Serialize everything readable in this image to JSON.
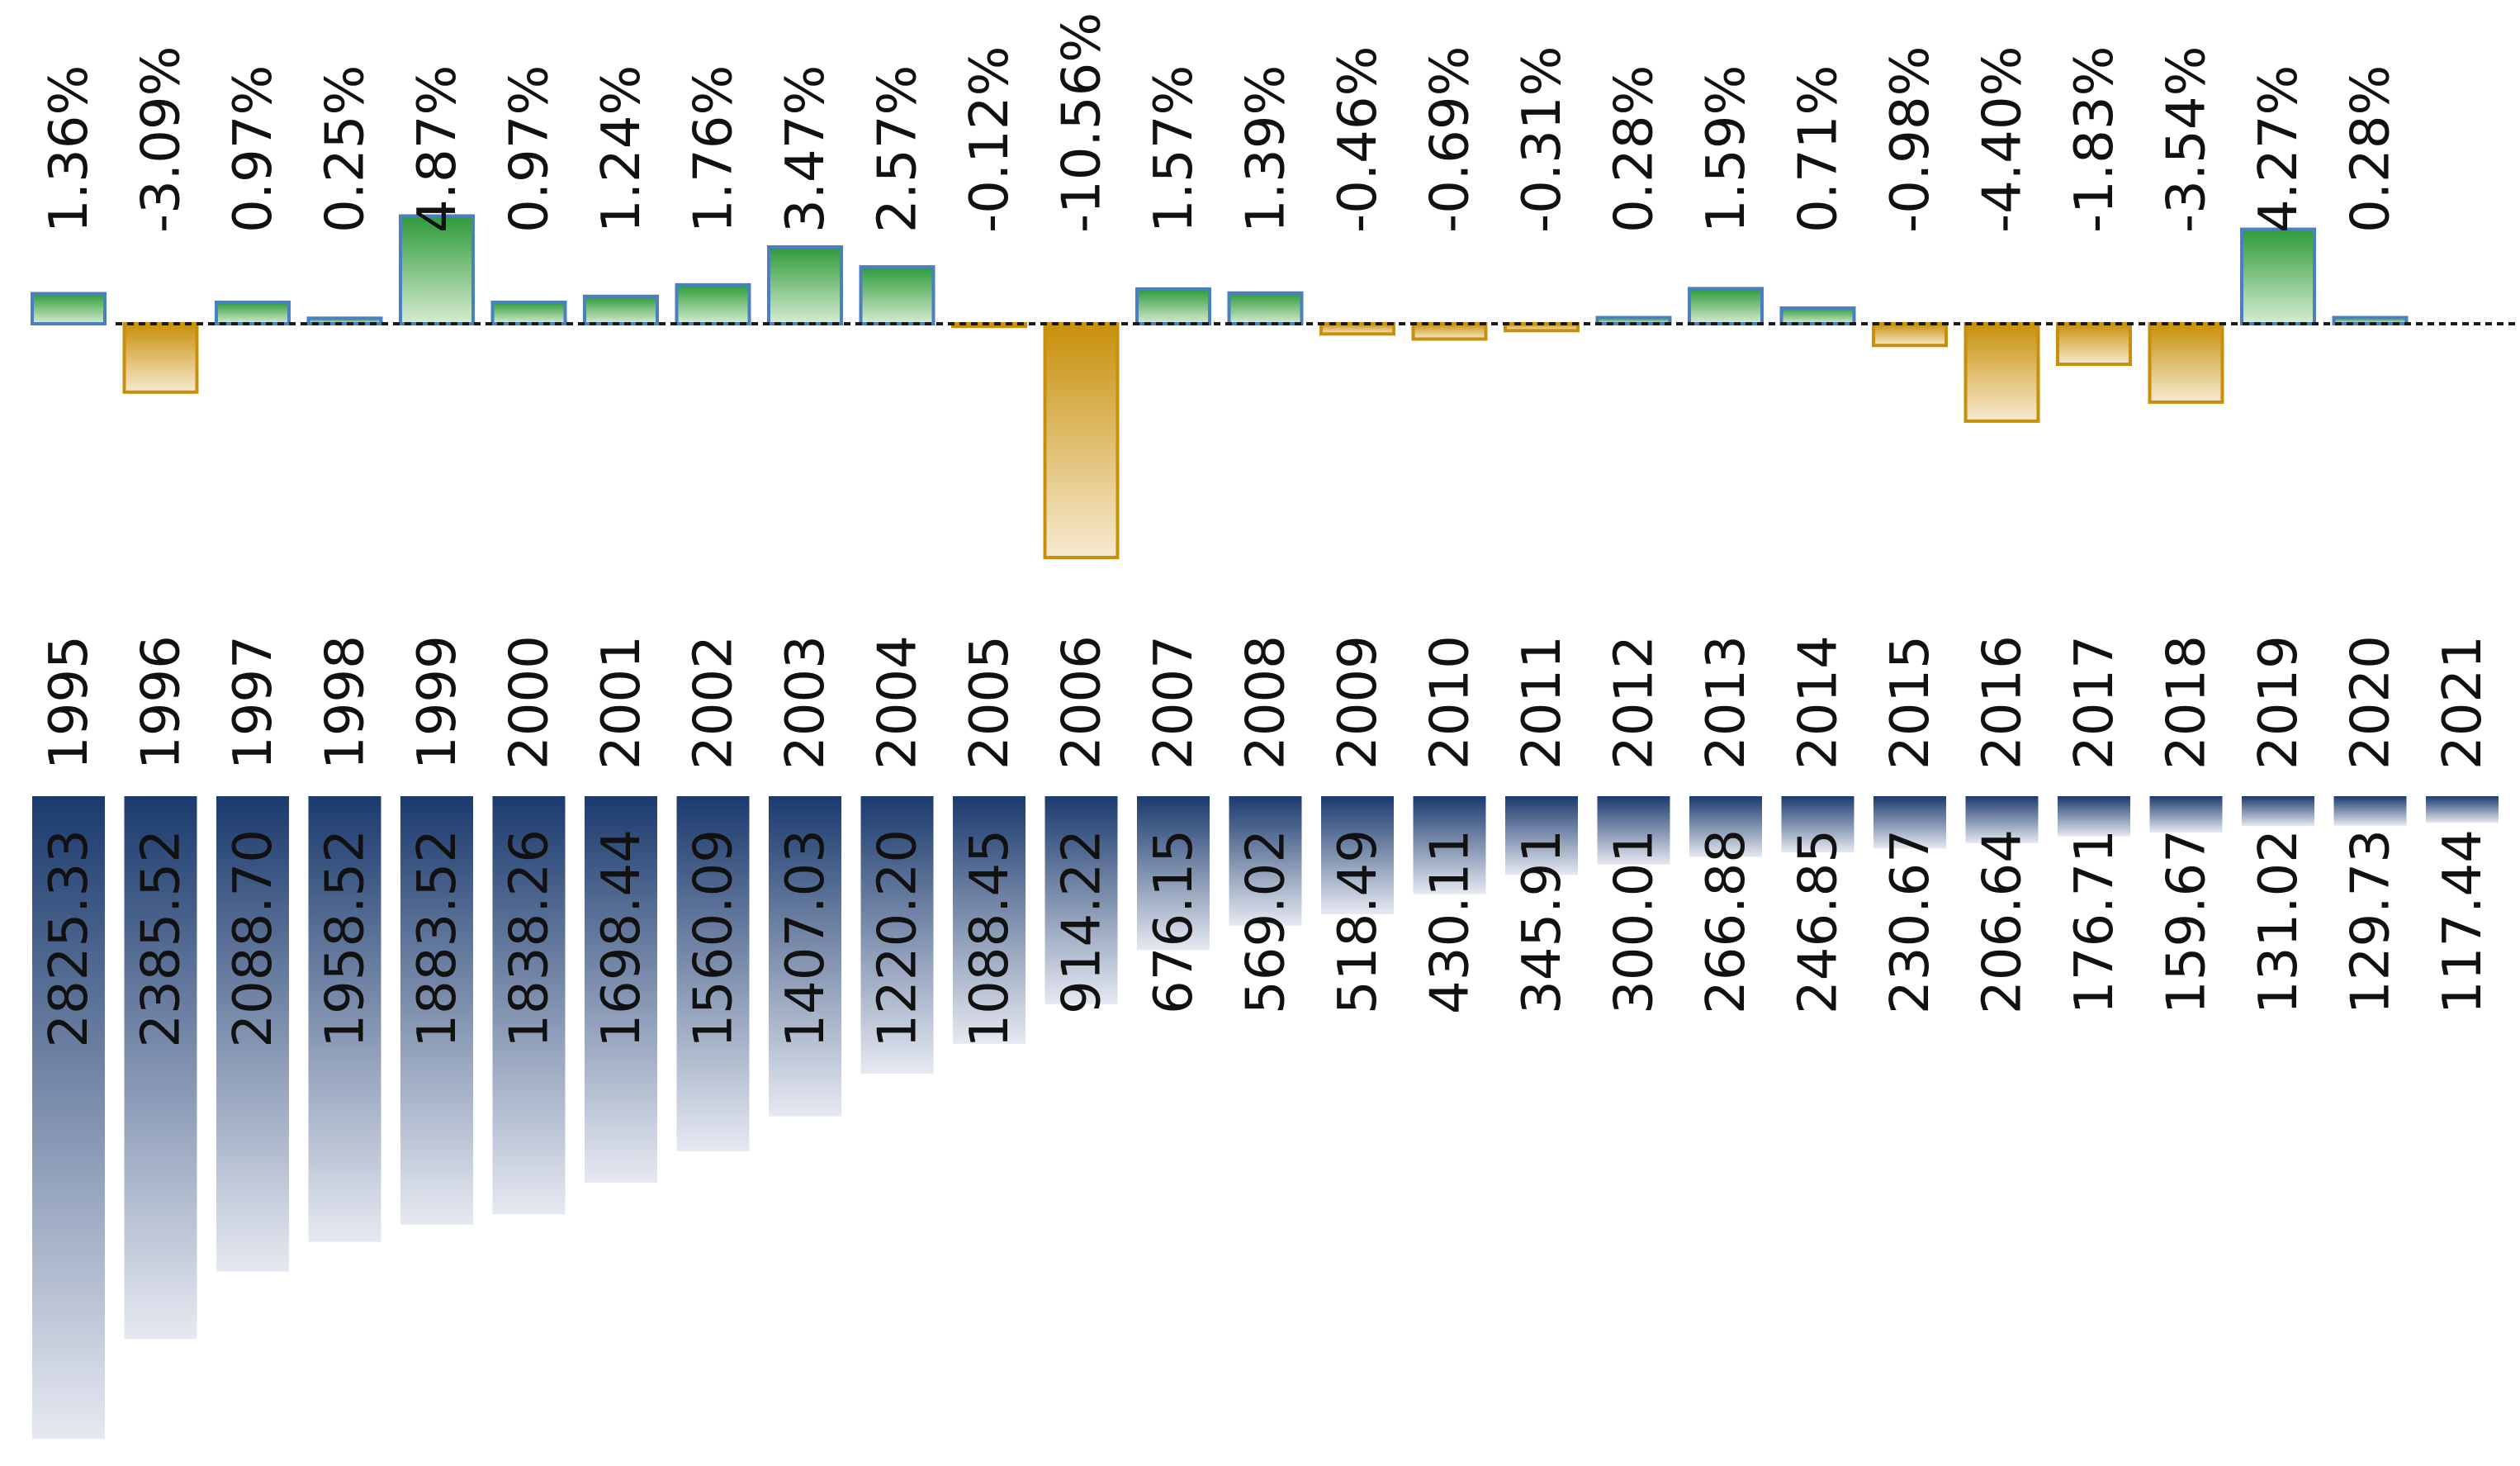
{
  "colors": {
    "background": "#ffffff",
    "positive_fill_top": "#2e9a3a",
    "positive_fill_bottom": "#d6ecd0",
    "positive_stroke": "#4a7fc1",
    "negative_fill_top": "#c8900a",
    "negative_fill_bottom": "#f6ead0",
    "negative_stroke": "#c8900a",
    "value_fill_top": "#1b3a6e",
    "value_fill_bottom": "#e6e9f1",
    "baseline": "#1a1a1a",
    "text": "#111111"
  },
  "chart_data": [
    {
      "type": "bar",
      "orientation": "vertical",
      "title": "",
      "xlabel": "",
      "ylabel": "",
      "categories": [
        "1995",
        "1996",
        "1997",
        "1998",
        "1999",
        "2000",
        "2001",
        "2002",
        "2003",
        "2004",
        "2005",
        "2006",
        "2007",
        "2008",
        "2009",
        "2010",
        "2011",
        "2012",
        "2013",
        "2014",
        "2015",
        "2016",
        "2017",
        "2018",
        "2019",
        "2020",
        "2021"
      ],
      "values": [
        1.36,
        -3.09,
        0.97,
        0.25,
        4.87,
        0.97,
        1.24,
        1.76,
        3.47,
        2.57,
        -0.12,
        -10.56,
        1.57,
        1.39,
        -0.46,
        -0.69,
        -0.31,
        0.28,
        1.59,
        0.71,
        -0.98,
        -4.4,
        -1.83,
        -3.54,
        4.27,
        0.28,
        null
      ],
      "labels": [
        "1.36%",
        "-3.09%",
        "0.97%",
        "0.25%",
        "4.87%",
        "0.97%",
        "1.24%",
        "1.76%",
        "3.47%",
        "2.57%",
        "-0.12%",
        "-10.56%",
        "1.57%",
        "1.39%",
        "-0.46%",
        "-0.69%",
        "-0.31%",
        "0.28%",
        "1.59%",
        "0.71%",
        "-0.98%",
        "-4.40%",
        "-1.83%",
        "-3.54%",
        "4.27%",
        "0.28%",
        ""
      ],
      "baseline": 0,
      "grid": false,
      "legend": "none"
    },
    {
      "type": "bar",
      "orientation": "vertical-downward",
      "title": "",
      "xlabel": "",
      "ylabel": "",
      "categories": [
        "1995",
        "1996",
        "1997",
        "1998",
        "1999",
        "2000",
        "2001",
        "2002",
        "2003",
        "2004",
        "2005",
        "2006",
        "2007",
        "2008",
        "2009",
        "2010",
        "2011",
        "2012",
        "2013",
        "2014",
        "2015",
        "2016",
        "2017",
        "2018",
        "2019",
        "2020",
        "2021"
      ],
      "values": [
        2825.33,
        2385.52,
        2088.7,
        1958.52,
        1883.52,
        1838.26,
        1698.44,
        1560.09,
        1407.03,
        1220.2,
        1088.45,
        914.22,
        676.15,
        569.02,
        518.49,
        430.11,
        345.91,
        300.01,
        266.88,
        246.85,
        230.67,
        206.64,
        176.71,
        159.67,
        131.02,
        129.73,
        117.44
      ],
      "labels": [
        "2825.33",
        "2385.52",
        "2088.70",
        "1958.52",
        "1883.52",
        "1838.26",
        "1698.44",
        "1560.09",
        "1407.03",
        "1220.20",
        "1088.45",
        "914.22",
        "676.15",
        "569.02",
        "518.49",
        "430.11",
        "345.91",
        "300.01",
        "266.88",
        "246.85",
        "230.67",
        "206.64",
        "176.71",
        "159.67",
        "131.02",
        "129.73",
        "117.44"
      ],
      "grid": false,
      "legend": "none"
    }
  ]
}
